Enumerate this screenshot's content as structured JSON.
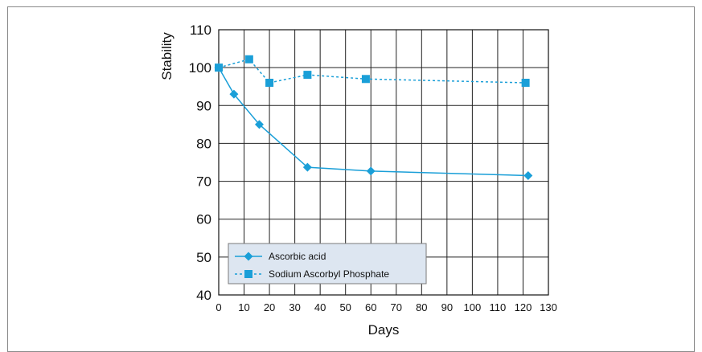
{
  "chart_data": {
    "type": "line",
    "title": "",
    "xlabel": "Days",
    "ylabel": "Stability",
    "xlim": [
      0,
      130
    ],
    "ylim": [
      40,
      110
    ],
    "xticks": [
      0,
      10,
      20,
      30,
      40,
      50,
      60,
      70,
      80,
      90,
      100,
      110,
      120,
      130
    ],
    "yticks": [
      40,
      50,
      60,
      70,
      80,
      90,
      100,
      110
    ],
    "grid": true,
    "legend_position": "bottom-left",
    "series": [
      {
        "name": "Ascorbic acid",
        "marker": "diamond",
        "line_style": "solid",
        "color": "#1a9fd8",
        "x": [
          0,
          6,
          16,
          35,
          60,
          122
        ],
        "y": [
          100,
          93,
          85,
          73.7,
          72.7,
          71.5
        ]
      },
      {
        "name": "Sodium Ascorbyl Phosphate",
        "marker": "square",
        "line_style": "dotted",
        "color": "#1a9fd8",
        "x": [
          0,
          12,
          20,
          35,
          58,
          121
        ],
        "y": [
          100,
          102.2,
          96,
          98.1,
          97,
          96
        ]
      }
    ]
  },
  "colors": {
    "series": "#1a9fd8",
    "legend_background": "#dde6f1",
    "grid": "#222222"
  }
}
